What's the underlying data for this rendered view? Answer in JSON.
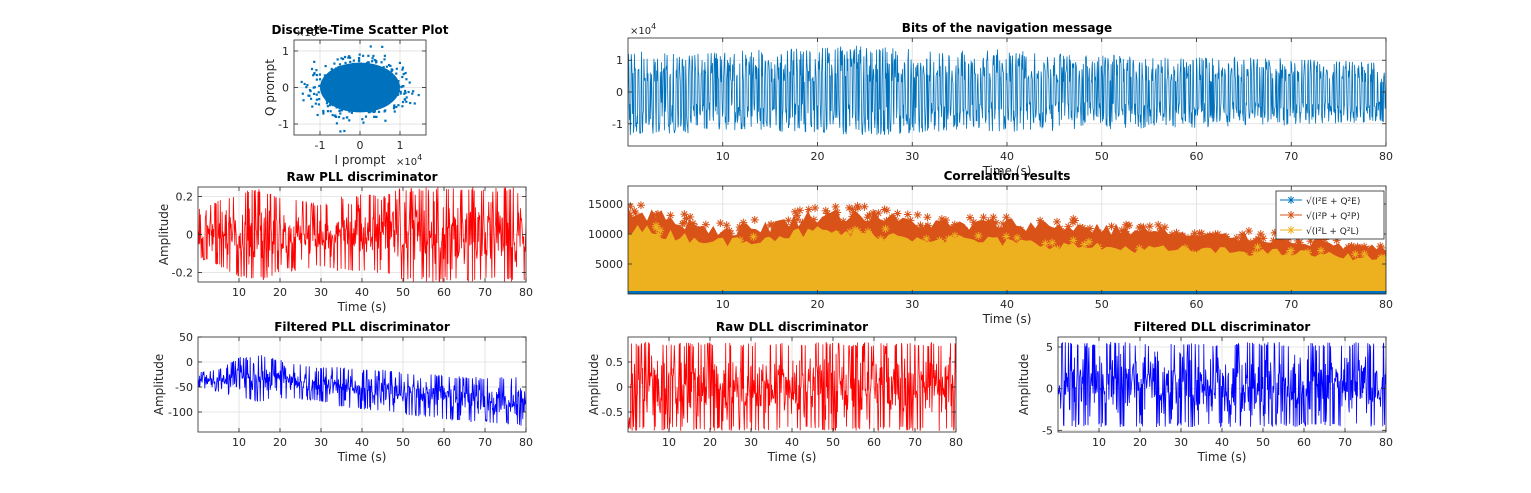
{
  "colors": {
    "blue": "#0072BD",
    "red": "#FF0000",
    "pure_blue": "#0000FF",
    "orange": "#D95319",
    "yellow": "#EDB120",
    "grid": "#DFDFDF",
    "axes": "#262626"
  },
  "chart_data": [
    {
      "id": "scatter",
      "type": "scatter",
      "title": "Discrete-Time Scatter Plot",
      "xlabel": "I prompt",
      "ylabel": "Q prompt",
      "x_exponent": "×10",
      "x_exponent_power": "4",
      "y_exponent": "×10",
      "y_exponent_power": "4",
      "xlim": [
        -1.65,
        1.65
      ],
      "ylim": [
        -1.3,
        1.3
      ],
      "xticks": [
        -1,
        0,
        1
      ],
      "yticks": [
        -1,
        0,
        1
      ],
      "tick_labels_x": [
        "-1",
        "0",
        "1"
      ],
      "tick_labels_y": [
        "-1",
        "0",
        "1"
      ],
      "color": "#0072BD",
      "grid": true,
      "point_cloud": {
        "center": [
          0,
          0
        ],
        "semi_axis_x": 1.0,
        "semi_axis_y": 0.68,
        "outlier_extent_x": 1.55,
        "outlier_extent_y": 1.2
      }
    },
    {
      "id": "nav-bits",
      "type": "line",
      "title": "Bits of the navigation message",
      "xlabel": "Time (s)",
      "ylabel": "",
      "y_exponent": "×10",
      "y_exponent_power": "4",
      "xlim": [
        0,
        80
      ],
      "ylim": [
        -1.7,
        1.7
      ],
      "xticks": [
        10,
        20,
        30,
        40,
        50,
        60,
        70,
        80
      ],
      "yticks": [
        -1,
        0,
        1
      ],
      "tick_labels_x": [
        "10",
        "20",
        "30",
        "40",
        "50",
        "60",
        "70",
        "80"
      ],
      "tick_labels_y": [
        "-1",
        "0",
        "1"
      ],
      "color": "#0072BD",
      "grid": true,
      "envelope": {
        "t": [
          0,
          5,
          10,
          15,
          20,
          25,
          30,
          35,
          40,
          45,
          50,
          55,
          60,
          65,
          70,
          75,
          80
        ],
        "upper": [
          1.35,
          1.2,
          1.3,
          1.35,
          1.4,
          1.5,
          1.35,
          1.3,
          1.35,
          1.2,
          1.2,
          1.15,
          1.1,
          1.15,
          1.05,
          1.0,
          0.95
        ],
        "lower": [
          -1.4,
          -1.35,
          -1.2,
          -1.25,
          -1.3,
          -1.4,
          -1.35,
          -1.2,
          -1.25,
          -1.25,
          -1.2,
          -1.15,
          -1.15,
          -1.1,
          -1.05,
          -1.0,
          -0.95
        ],
        "inner_gap": 0.3
      }
    },
    {
      "id": "raw-pll",
      "type": "line",
      "title": "Raw PLL discriminator",
      "xlabel": "Time (s)",
      "ylabel": "Amplitude",
      "xlim": [
        0,
        80
      ],
      "ylim": [
        -0.25,
        0.25
      ],
      "xticks": [
        10,
        20,
        30,
        40,
        50,
        60,
        70,
        80
      ],
      "yticks": [
        -0.2,
        0,
        0.2
      ],
      "tick_labels_x": [
        "10",
        "20",
        "30",
        "40",
        "50",
        "60",
        "70",
        "80"
      ],
      "tick_labels_y": [
        "-0.2",
        "0",
        "0.2"
      ],
      "color": "#FF0000",
      "grid": true,
      "envelope": {
        "t": [
          0,
          5,
          10,
          15,
          20,
          25,
          30,
          35,
          40,
          45,
          50,
          55,
          60,
          65,
          70,
          75,
          80
        ],
        "upper": [
          0.14,
          0.18,
          0.22,
          0.25,
          0.2,
          0.18,
          0.16,
          0.2,
          0.22,
          0.2,
          0.25,
          0.25,
          0.25,
          0.25,
          0.25,
          0.25,
          0.25
        ],
        "lower": [
          -0.12,
          -0.17,
          -0.22,
          -0.25,
          -0.2,
          -0.19,
          -0.17,
          -0.2,
          -0.21,
          -0.2,
          -0.25,
          -0.25,
          -0.25,
          -0.25,
          -0.25,
          -0.25,
          -0.25
        ],
        "inner_gap": 0
      }
    },
    {
      "id": "correlation",
      "type": "scatter",
      "title": "Correlation results",
      "xlabel": "Time (s)",
      "ylabel": "",
      "xlim": [
        0,
        80
      ],
      "ylim": [
        0,
        18000
      ],
      "xticks": [
        10,
        20,
        30,
        40,
        50,
        60,
        70,
        80
      ],
      "yticks": [
        5000,
        10000,
        15000
      ],
      "tick_labels_x": [
        "10",
        "20",
        "30",
        "40",
        "50",
        "60",
        "70",
        "80"
      ],
      "tick_labels_y": [
        "5000",
        "10000",
        "15000"
      ],
      "grid": true,
      "legend_position": "top-right",
      "series": [
        {
          "name": "√(I²E + Q²E)",
          "color": "#0072BD",
          "marker": "*",
          "t": [
            0,
            10,
            20,
            30,
            40,
            50,
            60,
            70,
            80
          ],
          "upper": [
            7500,
            7000,
            8500,
            8000,
            8500,
            8500,
            8000,
            7500,
            6500
          ],
          "lower": [
            0,
            0,
            0,
            0,
            0,
            0,
            0,
            0,
            0
          ]
        },
        {
          "name": "√(I²P + Q²P)",
          "color": "#D95319",
          "marker": "*",
          "t": [
            0,
            5,
            10,
            15,
            20,
            25,
            30,
            35,
            40,
            45,
            50,
            55,
            60,
            65,
            70,
            75,
            80
          ],
          "upper": [
            15500,
            13500,
            11500,
            12500,
            14500,
            14500,
            13000,
            12500,
            13000,
            12500,
            12000,
            11500,
            10500,
            10500,
            10000,
            9000,
            8000
          ],
          "lower": [
            5000,
            5000,
            5000,
            5000,
            5000,
            5000,
            5000,
            5000,
            5000,
            5000,
            5000,
            5000,
            5000,
            5000,
            5000,
            5000,
            5000
          ]
        },
        {
          "name": "√(I²L + Q²L)",
          "color": "#EDB120",
          "marker": "*",
          "t": [
            0,
            10,
            20,
            30,
            40,
            50,
            60,
            70,
            80
          ],
          "upper": [
            12000,
            9500,
            11500,
            10500,
            9500,
            8500,
            8000,
            7500,
            6500
          ],
          "lower": [
            500,
            500,
            500,
            500,
            500,
            500,
            500,
            500,
            500
          ]
        }
      ]
    },
    {
      "id": "filtered-pll",
      "type": "line",
      "title": "Filtered PLL discriminator",
      "xlabel": "Time (s)",
      "ylabel": "Amplitude",
      "xlim": [
        0,
        80
      ],
      "ylim": [
        -140,
        50
      ],
      "xticks": [
        10,
        20,
        30,
        40,
        50,
        60,
        70,
        80
      ],
      "yticks": [
        -100,
        -50,
        0,
        50
      ],
      "tick_labels_x": [
        "10",
        "20",
        "30",
        "40",
        "50",
        "60",
        "70",
        "80"
      ],
      "tick_labels_y": [
        "-100",
        "-50",
        "0",
        "50"
      ],
      "color": "#0000FF",
      "grid": true,
      "envelope": {
        "t": [
          0,
          5,
          10,
          15,
          20,
          25,
          30,
          35,
          40,
          45,
          50,
          55,
          60,
          65,
          70,
          75,
          80
        ],
        "upper": [
          -20,
          -15,
          10,
          15,
          5,
          -5,
          -10,
          -10,
          -15,
          -15,
          -20,
          -25,
          -25,
          -30,
          -30,
          -30,
          -30
        ],
        "lower": [
          -50,
          -60,
          -75,
          -80,
          -75,
          -75,
          -80,
          -90,
          -95,
          -100,
          -105,
          -110,
          -115,
          -120,
          -120,
          -125,
          -130
        ],
        "inner_gap": 0
      }
    },
    {
      "id": "raw-dll",
      "type": "line",
      "title": "Raw DLL discriminator",
      "xlabel": "Time (s)",
      "ylabel": "Amplitude",
      "xlim": [
        0,
        80
      ],
      "ylim": [
        -0.9,
        1.0
      ],
      "xticks": [
        10,
        20,
        30,
        40,
        50,
        60,
        70,
        80
      ],
      "yticks": [
        -0.5,
        0,
        0.5
      ],
      "tick_labels_x": [
        "10",
        "20",
        "30",
        "40",
        "50",
        "60",
        "70",
        "80"
      ],
      "tick_labels_y": [
        "-0.5",
        "0",
        "0.5"
      ],
      "color": "#FF0000",
      "grid": true,
      "envelope": {
        "t": [
          0,
          80
        ],
        "upper": [
          0.9,
          0.9
        ],
        "lower": [
          -0.88,
          -0.88
        ],
        "inner_gap": 0
      }
    },
    {
      "id": "filtered-dll",
      "type": "line",
      "title": "Filtered DLL discriminator",
      "xlabel": "Time (s)",
      "ylabel": "Amplitude",
      "xlim": [
        0,
        80
      ],
      "ylim": [
        -5.2,
        6.2
      ],
      "xticks": [
        10,
        20,
        30,
        40,
        50,
        60,
        70,
        80
      ],
      "yticks": [
        -5,
        0,
        5
      ],
      "tick_labels_x": [
        "10",
        "20",
        "30",
        "40",
        "50",
        "60",
        "70",
        "80"
      ],
      "tick_labels_y": [
        "-5",
        "0",
        "5"
      ],
      "color": "#0000FF",
      "grid": true,
      "envelope": {
        "t": [
          0,
          80
        ],
        "upper": [
          5.6,
          5.6
        ],
        "lower": [
          -4.6,
          -4.6
        ],
        "inner_gap": 0
      }
    }
  ]
}
